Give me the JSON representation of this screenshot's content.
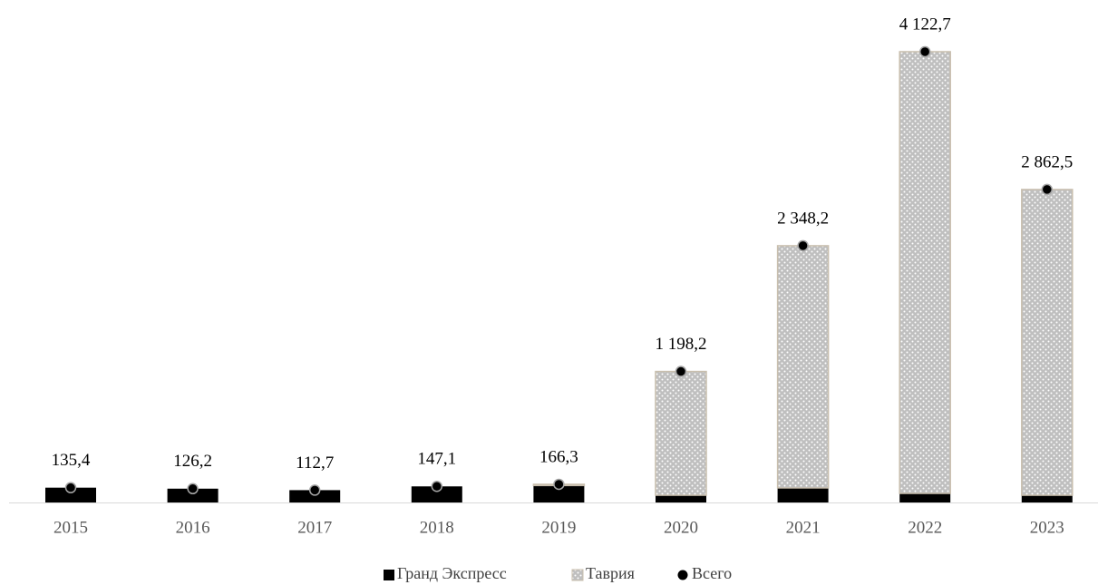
{
  "chart_data": {
    "type": "bar",
    "stacked": true,
    "categories": [
      "2015",
      "2016",
      "2017",
      "2018",
      "2019",
      "2020",
      "2021",
      "2022",
      "2023"
    ],
    "series": [
      {
        "name": "Гранд Экспресс",
        "color": "#000000",
        "values": [
          135.4,
          126.2,
          112.7,
          147.1,
          155.0,
          66.0,
          133.0,
          83.0,
          66.0
        ]
      },
      {
        "name": "Таврия",
        "color": "#bfbfbf",
        "values": [
          0,
          0,
          0,
          0,
          11.3,
          1132.2,
          2215.2,
          4039.7,
          2796.5
        ]
      },
      {
        "name": "Всего",
        "type": "scatter",
        "color": "#000000",
        "values": [
          135.4,
          126.2,
          112.7,
          147.1,
          166.3,
          1198.2,
          2348.2,
          4122.7,
          2862.5
        ],
        "value_labels": [
          "135,4",
          "126,2",
          "112,7",
          "147,1",
          "166,3",
          "1 198,2",
          "2 348,2",
          "4 122,7",
          "2 862,5"
        ]
      }
    ]
  }
}
